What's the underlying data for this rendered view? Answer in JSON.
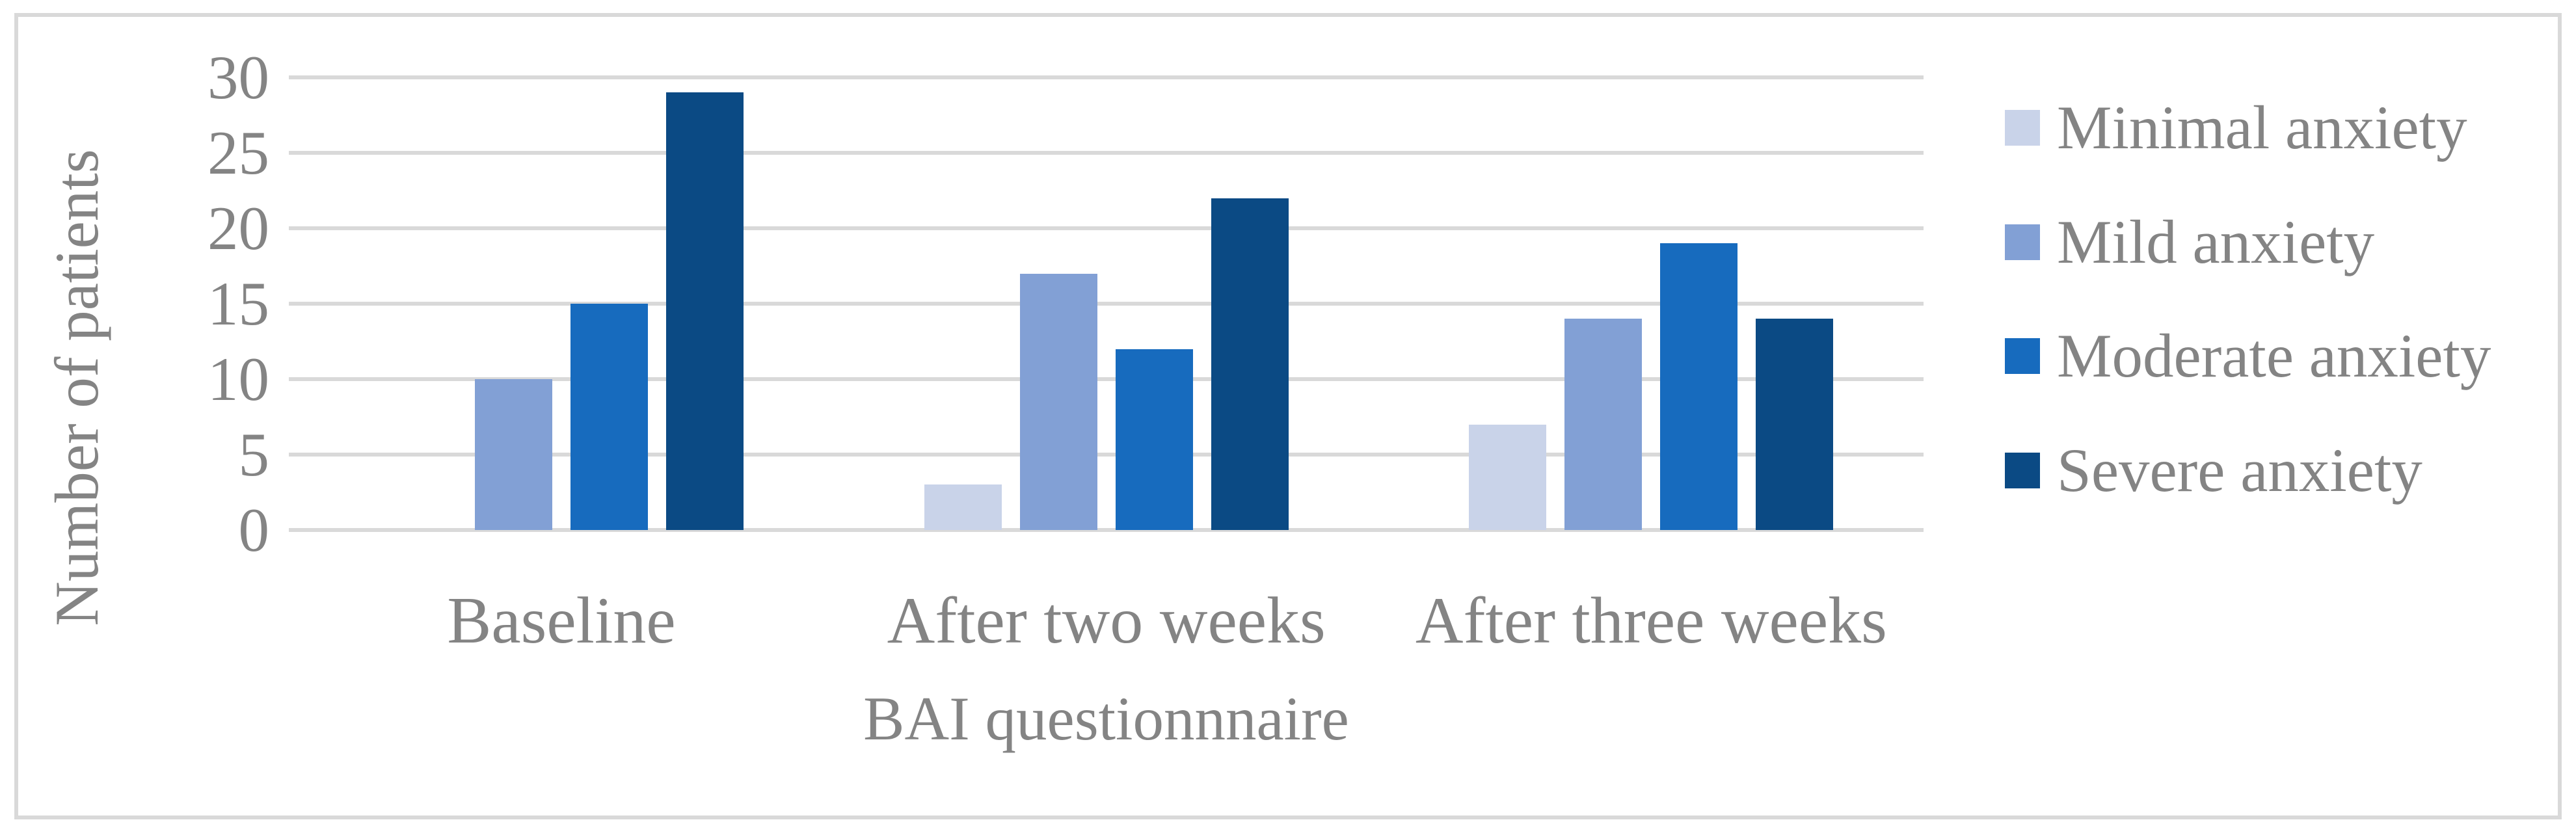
{
  "chart_data": {
    "type": "bar",
    "title": "",
    "categories": [
      "Baseline",
      "After two weeks",
      "After three weeks"
    ],
    "series": [
      {
        "name": "Minimal anxiety",
        "color": "#C9D3E9",
        "values": [
          0,
          3,
          7
        ]
      },
      {
        "name": "Mild anxiety",
        "color": "#82A0D5",
        "values": [
          10,
          17,
          14
        ]
      },
      {
        "name": "Moderate anxiety",
        "color": "#176BBE",
        "values": [
          15,
          12,
          19
        ]
      },
      {
        "name": "Severe anxiety",
        "color": "#0B4A84",
        "values": [
          29,
          22,
          14
        ]
      }
    ],
    "xlabel": "BAI questionnnaire",
    "ylabel": "Number of patients",
    "ylim": [
      0,
      30
    ],
    "ytick_step": 5,
    "yticks": [
      "0",
      "5",
      "10",
      "15",
      "20",
      "25",
      "30"
    ],
    "grid": true,
    "legend_position": "right",
    "gridline_color": "#D9D9D9",
    "frame_border_color": "#D9D9D9",
    "text_color": "#848484",
    "background_color": "#ffffff"
  }
}
